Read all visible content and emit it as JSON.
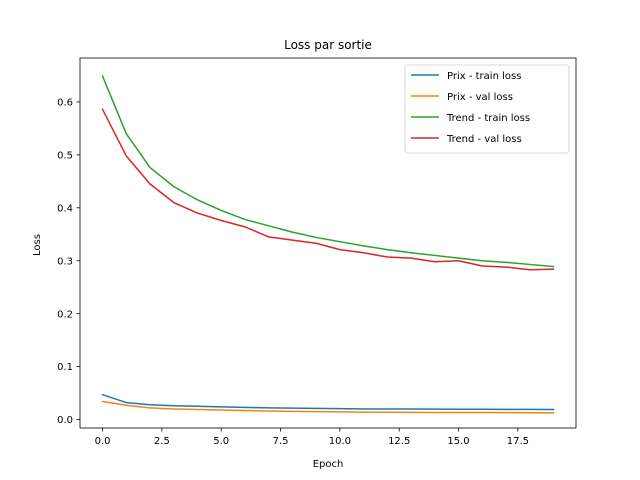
{
  "chart_data": {
    "type": "line",
    "title": "Loss par sortie",
    "xlabel": "Epoch",
    "ylabel": "Loss",
    "xlim": [
      -0.95,
      19.95
    ],
    "ylim": [
      -0.016,
      0.683
    ],
    "xticks": [
      0,
      2.5,
      5,
      7.5,
      10,
      12.5,
      15,
      17.5
    ],
    "xtick_labels": [
      "0.0",
      "2.5",
      "5.0",
      "7.5",
      "10.0",
      "12.5",
      "15.0",
      "17.5"
    ],
    "yticks": [
      0,
      0.1,
      0.2,
      0.3,
      0.4,
      0.5,
      0.6
    ],
    "ytick_labels": [
      "0.0",
      "0.1",
      "0.2",
      "0.3",
      "0.4",
      "0.5",
      "0.6"
    ],
    "grid": false,
    "legend_position": "top-right",
    "x": [
      0,
      1,
      2,
      3,
      4,
      5,
      6,
      7,
      8,
      9,
      10,
      11,
      12,
      13,
      14,
      15,
      16,
      17,
      18,
      19
    ],
    "series": [
      {
        "name": "Prix - train loss",
        "color": "#1f77b4",
        "values": [
          0.047,
          0.032,
          0.028,
          0.026,
          0.025,
          0.024,
          0.023,
          0.022,
          0.0215,
          0.021,
          0.0205,
          0.02,
          0.02,
          0.0198,
          0.0196,
          0.0194,
          0.0193,
          0.0192,
          0.0191,
          0.019
        ]
      },
      {
        "name": "Prix - val loss",
        "color": "#ff7f0e",
        "values": [
          0.034,
          0.027,
          0.022,
          0.02,
          0.019,
          0.018,
          0.017,
          0.016,
          0.0155,
          0.015,
          0.0145,
          0.014,
          0.0138,
          0.0136,
          0.0134,
          0.0133,
          0.0132,
          0.013,
          0.0128,
          0.0125
        ]
      },
      {
        "name": "Trend - train loss",
        "color": "#2ca02c",
        "values": [
          0.649,
          0.54,
          0.476,
          0.44,
          0.415,
          0.395,
          0.378,
          0.366,
          0.354,
          0.344,
          0.336,
          0.328,
          0.321,
          0.315,
          0.31,
          0.305,
          0.3,
          0.297,
          0.293,
          0.289
        ]
      },
      {
        "name": "Trend - val loss",
        "color": "#d62728",
        "values": [
          0.586,
          0.498,
          0.445,
          0.41,
          0.39,
          0.376,
          0.364,
          0.345,
          0.339,
          0.333,
          0.321,
          0.315,
          0.307,
          0.305,
          0.298,
          0.3,
          0.29,
          0.288,
          0.283,
          0.284
        ]
      }
    ]
  }
}
